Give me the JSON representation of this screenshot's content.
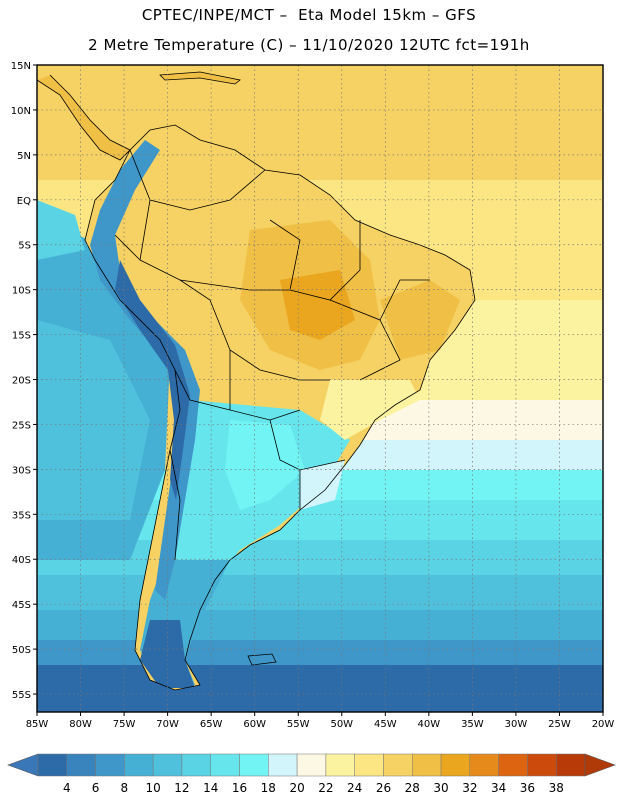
{
  "header": {
    "line1": "CPTEC/INPE/MCT –  Eta Model 15km – GFS",
    "line2": "2 Metre Temperature (C) – 11/10/2020 12UTC fct=191h"
  },
  "map": {
    "lat_labels": [
      "15N",
      "10N",
      "5N",
      "EQ",
      "5S",
      "10S",
      "15S",
      "20S",
      "25S",
      "30S",
      "35S",
      "40S",
      "45S",
      "50S",
      "55S"
    ],
    "lon_labels": [
      "85W",
      "80W",
      "75W",
      "70W",
      "65W",
      "60W",
      "55W",
      "50W",
      "45W",
      "40W",
      "35W",
      "30W",
      "25W",
      "20W"
    ],
    "lat_range": [
      15,
      -57
    ],
    "lon_range": [
      -85,
      -20
    ]
  },
  "colorbar": {
    "labels": [
      "4",
      "6",
      "8",
      "10",
      "12",
      "14",
      "16",
      "18",
      "20",
      "22",
      "24",
      "26",
      "28",
      "30",
      "32",
      "34",
      "36",
      "38"
    ],
    "colors": [
      "#2d6aa8",
      "#3a84be",
      "#3f97c9",
      "#46b0d4",
      "#4fc1dc",
      "#5ad4e4",
      "#66e6ec",
      "#72f4f4",
      "#d2f4fb",
      "#fdf8e4",
      "#fcf3a0",
      "#fbe683",
      "#f5d263",
      "#f0bf45",
      "#eaa61e",
      "#e68a1c",
      "#dd6410",
      "#cb4a0c",
      "#b73a08"
    ],
    "low_color": "#3a77b8",
    "high_color": "#b03a08"
  }
}
